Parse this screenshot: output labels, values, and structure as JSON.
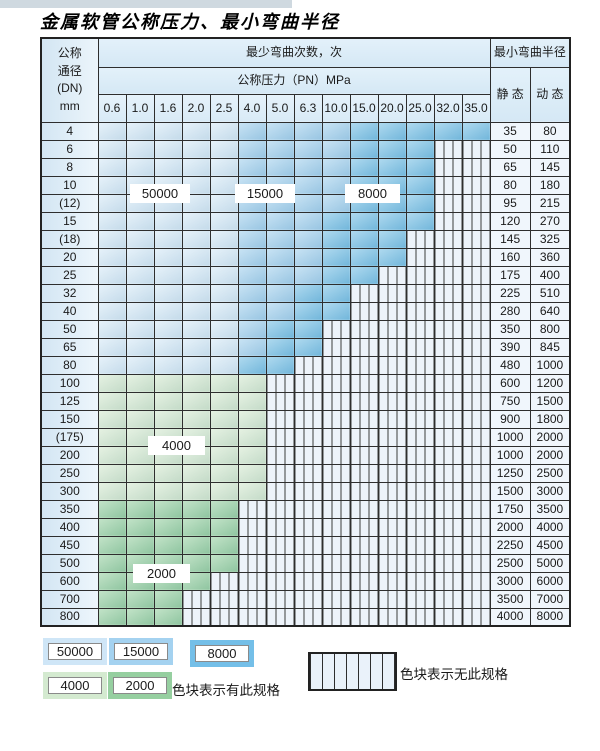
{
  "page": {
    "title": "金属软管公称压力、最小弯曲半径"
  },
  "table": {
    "header": {
      "dn_lines": [
        "公称",
        "通径",
        "(DN)",
        "mm"
      ],
      "bend_cycles_label": "最少弯曲次数，次",
      "pressure_label": "公称压力（PN）MPa",
      "min_radius_label": "最小弯曲半径",
      "static_label": "静  态",
      "dynamic_label": "动  态",
      "pressures": [
        "0.6",
        "1.0",
        "1.6",
        "2.0",
        "2.5",
        "4.0",
        "5.0",
        "6.3",
        "10.0",
        "15.0",
        "20.0",
        "25.0",
        "32.0",
        "35.0"
      ]
    },
    "zone_colors": {
      "z50000": "#d7eaf7",
      "z15000": "#a6d2ee",
      "z8000": "#7cc2e6",
      "z4000": "#d6ead1",
      "z2000": "#9cd2a5"
    },
    "overlay_labels": {
      "l50000": "50000",
      "l15000": "15000",
      "l8000": "8000",
      "l4000": "4000",
      "l2000": "2000"
    },
    "rows": [
      {
        "dn": "4",
        "zones": [
          [
            "z50000",
            5
          ],
          [
            "z15000",
            4
          ],
          [
            "z8000",
            5
          ]
        ],
        "static": "35",
        "dynamic": "80"
      },
      {
        "dn": "6",
        "zones": [
          [
            "z50000",
            5
          ],
          [
            "z15000",
            4
          ],
          [
            "z8000",
            3
          ]
        ],
        "static": "50",
        "dynamic": "110"
      },
      {
        "dn": "8",
        "zones": [
          [
            "z50000",
            5
          ],
          [
            "z15000",
            4
          ],
          [
            "z8000",
            3
          ]
        ],
        "static": "65",
        "dynamic": "145"
      },
      {
        "dn": "10",
        "zones": [
          [
            "z50000",
            5
          ],
          [
            "z15000",
            4
          ],
          [
            "z8000",
            3
          ]
        ],
        "static": "80",
        "dynamic": "180"
      },
      {
        "dn": "(12)",
        "zones": [
          [
            "z50000",
            5
          ],
          [
            "z15000",
            4
          ],
          [
            "z8000",
            3
          ]
        ],
        "static": "95",
        "dynamic": "215"
      },
      {
        "dn": "15",
        "zones": [
          [
            "z50000",
            5
          ],
          [
            "z15000",
            3
          ],
          [
            "z8000",
            4
          ]
        ],
        "static": "120",
        "dynamic": "270"
      },
      {
        "dn": "(18)",
        "zones": [
          [
            "z50000",
            5
          ],
          [
            "z15000",
            3
          ],
          [
            "z8000",
            3
          ]
        ],
        "static": "145",
        "dynamic": "325"
      },
      {
        "dn": "20",
        "zones": [
          [
            "z50000",
            5
          ],
          [
            "z15000",
            3
          ],
          [
            "z8000",
            3
          ]
        ],
        "static": "160",
        "dynamic": "360"
      },
      {
        "dn": "25",
        "zones": [
          [
            "z50000",
            5
          ],
          [
            "z15000",
            3
          ],
          [
            "z8000",
            2
          ]
        ],
        "static": "175",
        "dynamic": "400"
      },
      {
        "dn": "32",
        "zones": [
          [
            "z50000",
            5
          ],
          [
            "z15000",
            2
          ],
          [
            "z8000",
            2
          ]
        ],
        "static": "225",
        "dynamic": "510"
      },
      {
        "dn": "40",
        "zones": [
          [
            "z50000",
            5
          ],
          [
            "z15000",
            2
          ],
          [
            "z8000",
            2
          ]
        ],
        "static": "280",
        "dynamic": "640"
      },
      {
        "dn": "50",
        "zones": [
          [
            "z50000",
            5
          ],
          [
            "z15000",
            1
          ],
          [
            "z8000",
            2
          ]
        ],
        "static": "350",
        "dynamic": "800"
      },
      {
        "dn": "65",
        "zones": [
          [
            "z50000",
            5
          ],
          [
            "z15000",
            1
          ],
          [
            "z8000",
            2
          ]
        ],
        "static": "390",
        "dynamic": "845"
      },
      {
        "dn": "80",
        "zones": [
          [
            "z50000",
            5
          ],
          [
            "z8000",
            2
          ]
        ],
        "static": "480",
        "dynamic": "1000"
      },
      {
        "dn": "100",
        "zones": [
          [
            "z4000",
            6
          ]
        ],
        "static": "600",
        "dynamic": "1200"
      },
      {
        "dn": "125",
        "zones": [
          [
            "z4000",
            6
          ]
        ],
        "static": "750",
        "dynamic": "1500"
      },
      {
        "dn": "150",
        "zones": [
          [
            "z4000",
            6
          ]
        ],
        "static": "900",
        "dynamic": "1800"
      },
      {
        "dn": "(175)",
        "zones": [
          [
            "z4000",
            6
          ]
        ],
        "static": "1000",
        "dynamic": "2000"
      },
      {
        "dn": "200",
        "zones": [
          [
            "z4000",
            6
          ]
        ],
        "static": "1000",
        "dynamic": "2000"
      },
      {
        "dn": "250",
        "zones": [
          [
            "z4000",
            6
          ]
        ],
        "static": "1250",
        "dynamic": "2500"
      },
      {
        "dn": "300",
        "zones": [
          [
            "z4000",
            6
          ]
        ],
        "static": "1500",
        "dynamic": "3000"
      },
      {
        "dn": "350",
        "zones": [
          [
            "z2000",
            5
          ]
        ],
        "static": "1750",
        "dynamic": "3500"
      },
      {
        "dn": "400",
        "zones": [
          [
            "z2000",
            5
          ]
        ],
        "static": "2000",
        "dynamic": "4000"
      },
      {
        "dn": "450",
        "zones": [
          [
            "z2000",
            5
          ]
        ],
        "static": "2250",
        "dynamic": "4500"
      },
      {
        "dn": "500",
        "zones": [
          [
            "z2000",
            5
          ]
        ],
        "static": "2500",
        "dynamic": "5000"
      },
      {
        "dn": "600",
        "zones": [
          [
            "z2000",
            4
          ]
        ],
        "static": "3000",
        "dynamic": "6000"
      },
      {
        "dn": "700",
        "zones": [
          [
            "z2000",
            3
          ]
        ],
        "static": "3500",
        "dynamic": "7000"
      },
      {
        "dn": "800",
        "zones": [
          [
            "z2000",
            3
          ]
        ],
        "static": "4000",
        "dynamic": "8000"
      }
    ],
    "num_pressure_columns": 14
  },
  "legend": {
    "items": [
      {
        "label": "50000",
        "color": "#cfe6f7"
      },
      {
        "label": "15000",
        "color": "#a4d2f0"
      },
      {
        "label": "8000",
        "color": "#74bfe8"
      },
      {
        "label": "4000",
        "color": "#d4ead0"
      },
      {
        "label": "2000",
        "color": "#96cfa0"
      }
    ],
    "has_spec_text": "色块表示有此规格",
    "no_spec_text": "色块表示无此规格"
  }
}
